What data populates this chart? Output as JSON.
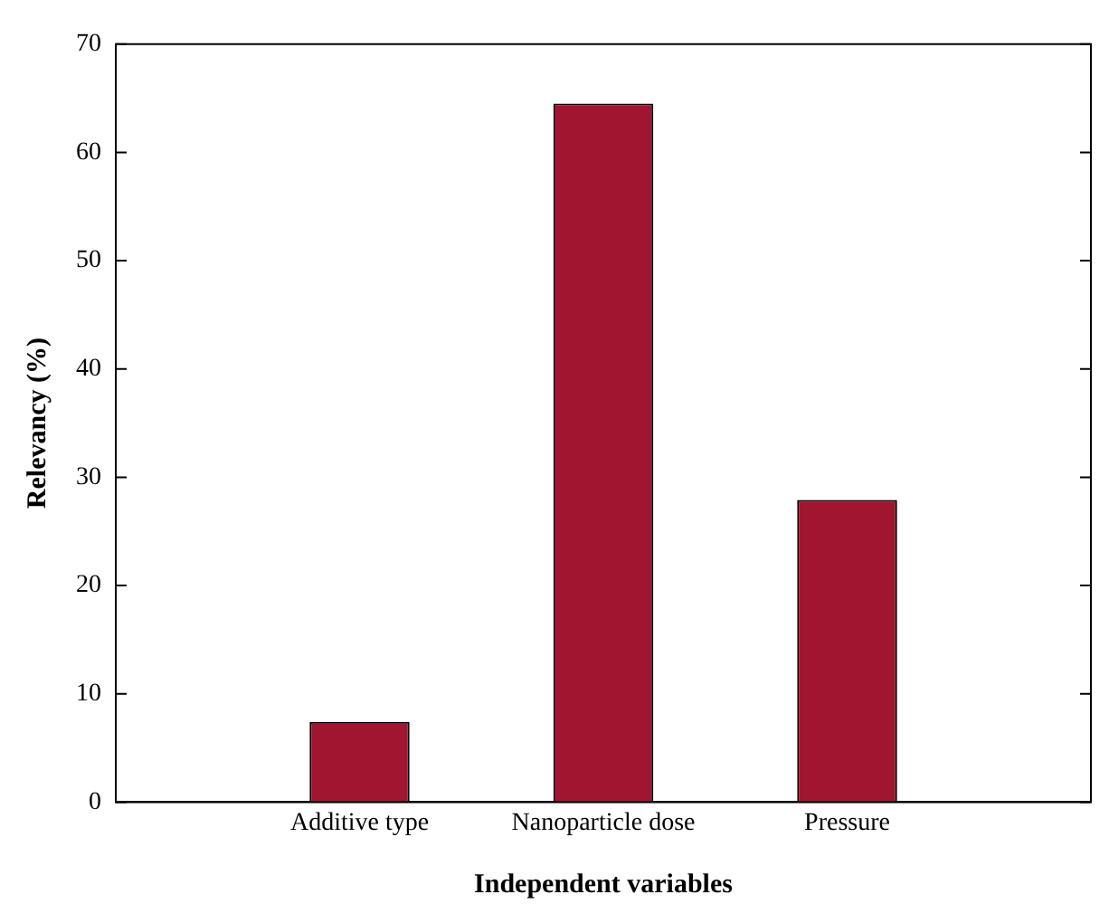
{
  "chart_data": {
    "type": "bar",
    "xlabel": "Independent variables",
    "ylabel": "Relevancy (%)",
    "categories": [
      "Additive type",
      "Nanoparticle dose",
      "Pressure"
    ],
    "values": [
      7.4,
      64.5,
      27.9
    ],
    "color": "#a0152f",
    "ylim": [
      0,
      70
    ],
    "yticks": [
      0,
      10,
      20,
      30,
      40,
      50,
      60,
      70
    ],
    "grid": false
  }
}
